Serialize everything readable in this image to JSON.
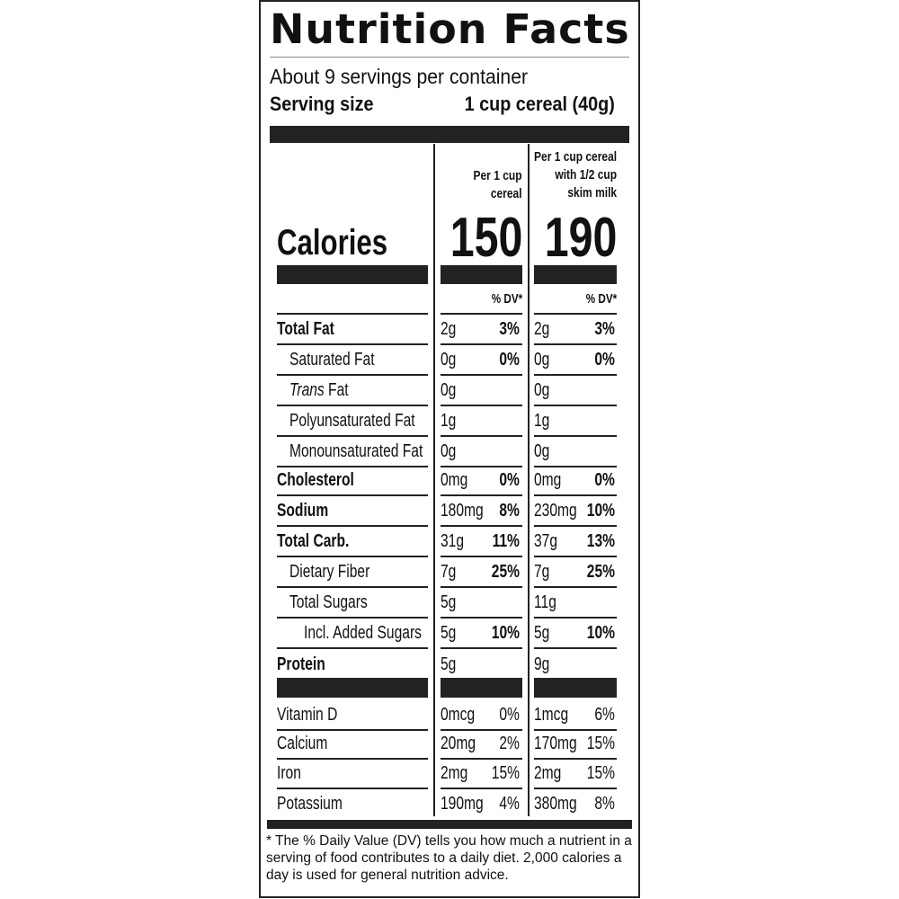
{
  "title": "Nutrition Facts",
  "servings": "About 9 servings per container",
  "serving_size_label": "Serving size",
  "serving_size_value": "1 cup cereal (40g)",
  "columns": [
    {
      "header": [
        "Per 1 cup",
        "cereal"
      ],
      "calories": "150",
      "dv_header": "% DV*"
    },
    {
      "header": [
        "Per 1 cup cereal",
        "with 1/2 cup",
        "skim milk"
      ],
      "calories": "190",
      "dv_header": "% DV*"
    }
  ],
  "calories_label": "Calories",
  "nutrients": [
    {
      "label": "Total Fat",
      "c1": "2g",
      "d1": "3%",
      "c2": "2g",
      "d2": "3%"
    },
    {
      "label": "Saturated Fat",
      "c1": "0g",
      "d1": "0%",
      "c2": "0g",
      "d2": "0%"
    },
    {
      "label": "Trans Fat",
      "c1": "0g",
      "d1": "",
      "c2": "0g",
      "d2": ""
    },
    {
      "label": "Polyunsaturated Fat",
      "c1": "1g",
      "d1": "",
      "c2": "1g",
      "d2": ""
    },
    {
      "label": "Monounsaturated Fat",
      "c1": "0g",
      "d1": "",
      "c2": "0g",
      "d2": ""
    },
    {
      "label": "Cholesterol",
      "c1": "0mg",
      "d1": "0%",
      "c2": "0mg",
      "d2": "0%"
    },
    {
      "label": "Sodium",
      "c1": "180mg",
      "d1": "8%",
      "c2": "230mg",
      "d2": "10%"
    },
    {
      "label": "Total Carb.",
      "c1": "31g",
      "d1": "11%",
      "c2": "37g",
      "d2": "13%"
    },
    {
      "label": "Dietary Fiber",
      "c1": "7g",
      "d1": "25%",
      "c2": "7g",
      "d2": "25%"
    },
    {
      "label": "Total Sugars",
      "c1": "5g",
      "d1": "",
      "c2": "11g",
      "d2": ""
    },
    {
      "label": "Incl. Added Sugars",
      "c1": "5g",
      "d1": "10%",
      "c2": "5g",
      "d2": "10%"
    },
    {
      "label": "Protein",
      "c1": "5g",
      "d1": "",
      "c2": "9g",
      "d2": ""
    }
  ],
  "vitamins": [
    {
      "label": "Vitamin D",
      "c1": "0mcg",
      "d1": "0%",
      "c2": "1mcg",
      "d2": "6%"
    },
    {
      "label": "Calcium",
      "c1": "20mg",
      "d1": "2%",
      "c2": "170mg",
      "d2": "15%"
    },
    {
      "label": "Iron",
      "c1": "2mg",
      "d1": "15%",
      "c2": "2mg",
      "d2": "15%"
    },
    {
      "label": "Potassium",
      "c1": "190mg",
      "d1": "4%",
      "c2": "380mg",
      "d2": "8%"
    }
  ],
  "footnote": "* The % Daily Value (DV) tells you how much a nutrient in a serving of food contributes to a daily diet. 2,000 calories a day is used for general nutrition advice."
}
